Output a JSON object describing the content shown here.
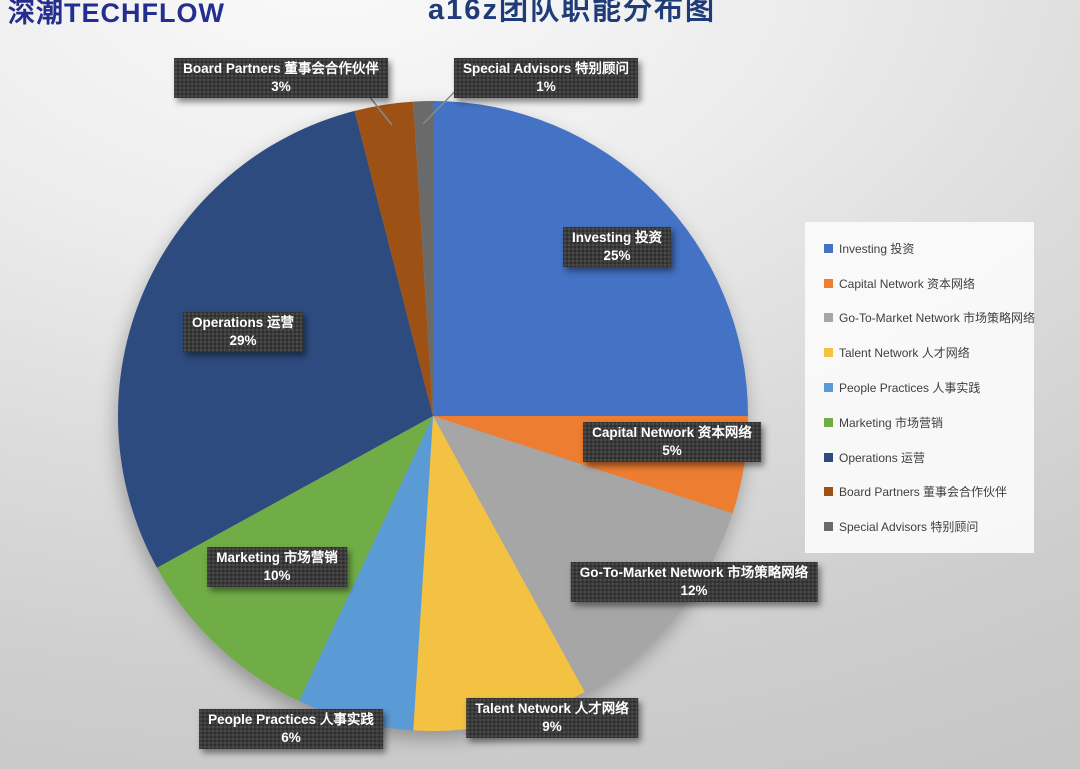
{
  "page": {
    "logo": "深潮TECHFLOW",
    "title": "a16z团队职能分布图"
  },
  "chart_data": {
    "type": "pie",
    "title": "a16z团队职能分布图",
    "start_angle_deg": 0,
    "direction": "clockwise",
    "legend_position": "right",
    "labels_show": "name_and_percent",
    "slices": [
      {
        "label": "Investing 投资",
        "pct": "25%",
        "value": 25,
        "color": "#4472C4"
      },
      {
        "label": "Capital Network 资本网络",
        "pct": "5%",
        "value": 5,
        "color": "#ED7D31"
      },
      {
        "label": "Go-To-Market Network 市场策略网络",
        "pct": "12%",
        "value": 12,
        "color": "#A6A6A6"
      },
      {
        "label": "Talent Network 人才网络",
        "pct": "9%",
        "value": 9,
        "color": "#F3C242"
      },
      {
        "label": "People Practices 人事实践",
        "pct": "6%",
        "value": 6,
        "color": "#5B9BD5"
      },
      {
        "label": "Marketing 市场营销",
        "pct": "10%",
        "value": 10,
        "color": "#70AD47"
      },
      {
        "label": "Operations 运营",
        "pct": "29%",
        "value": 29,
        "color": "#2D4B7E"
      },
      {
        "label": "Board Partners 董事会合作伙伴",
        "pct": "3%",
        "value": 3,
        "color": "#9E5114"
      },
      {
        "label": "Special Advisors 特别顾问",
        "pct": "1%",
        "value": 1,
        "color": "#6A6A6A"
      }
    ]
  }
}
